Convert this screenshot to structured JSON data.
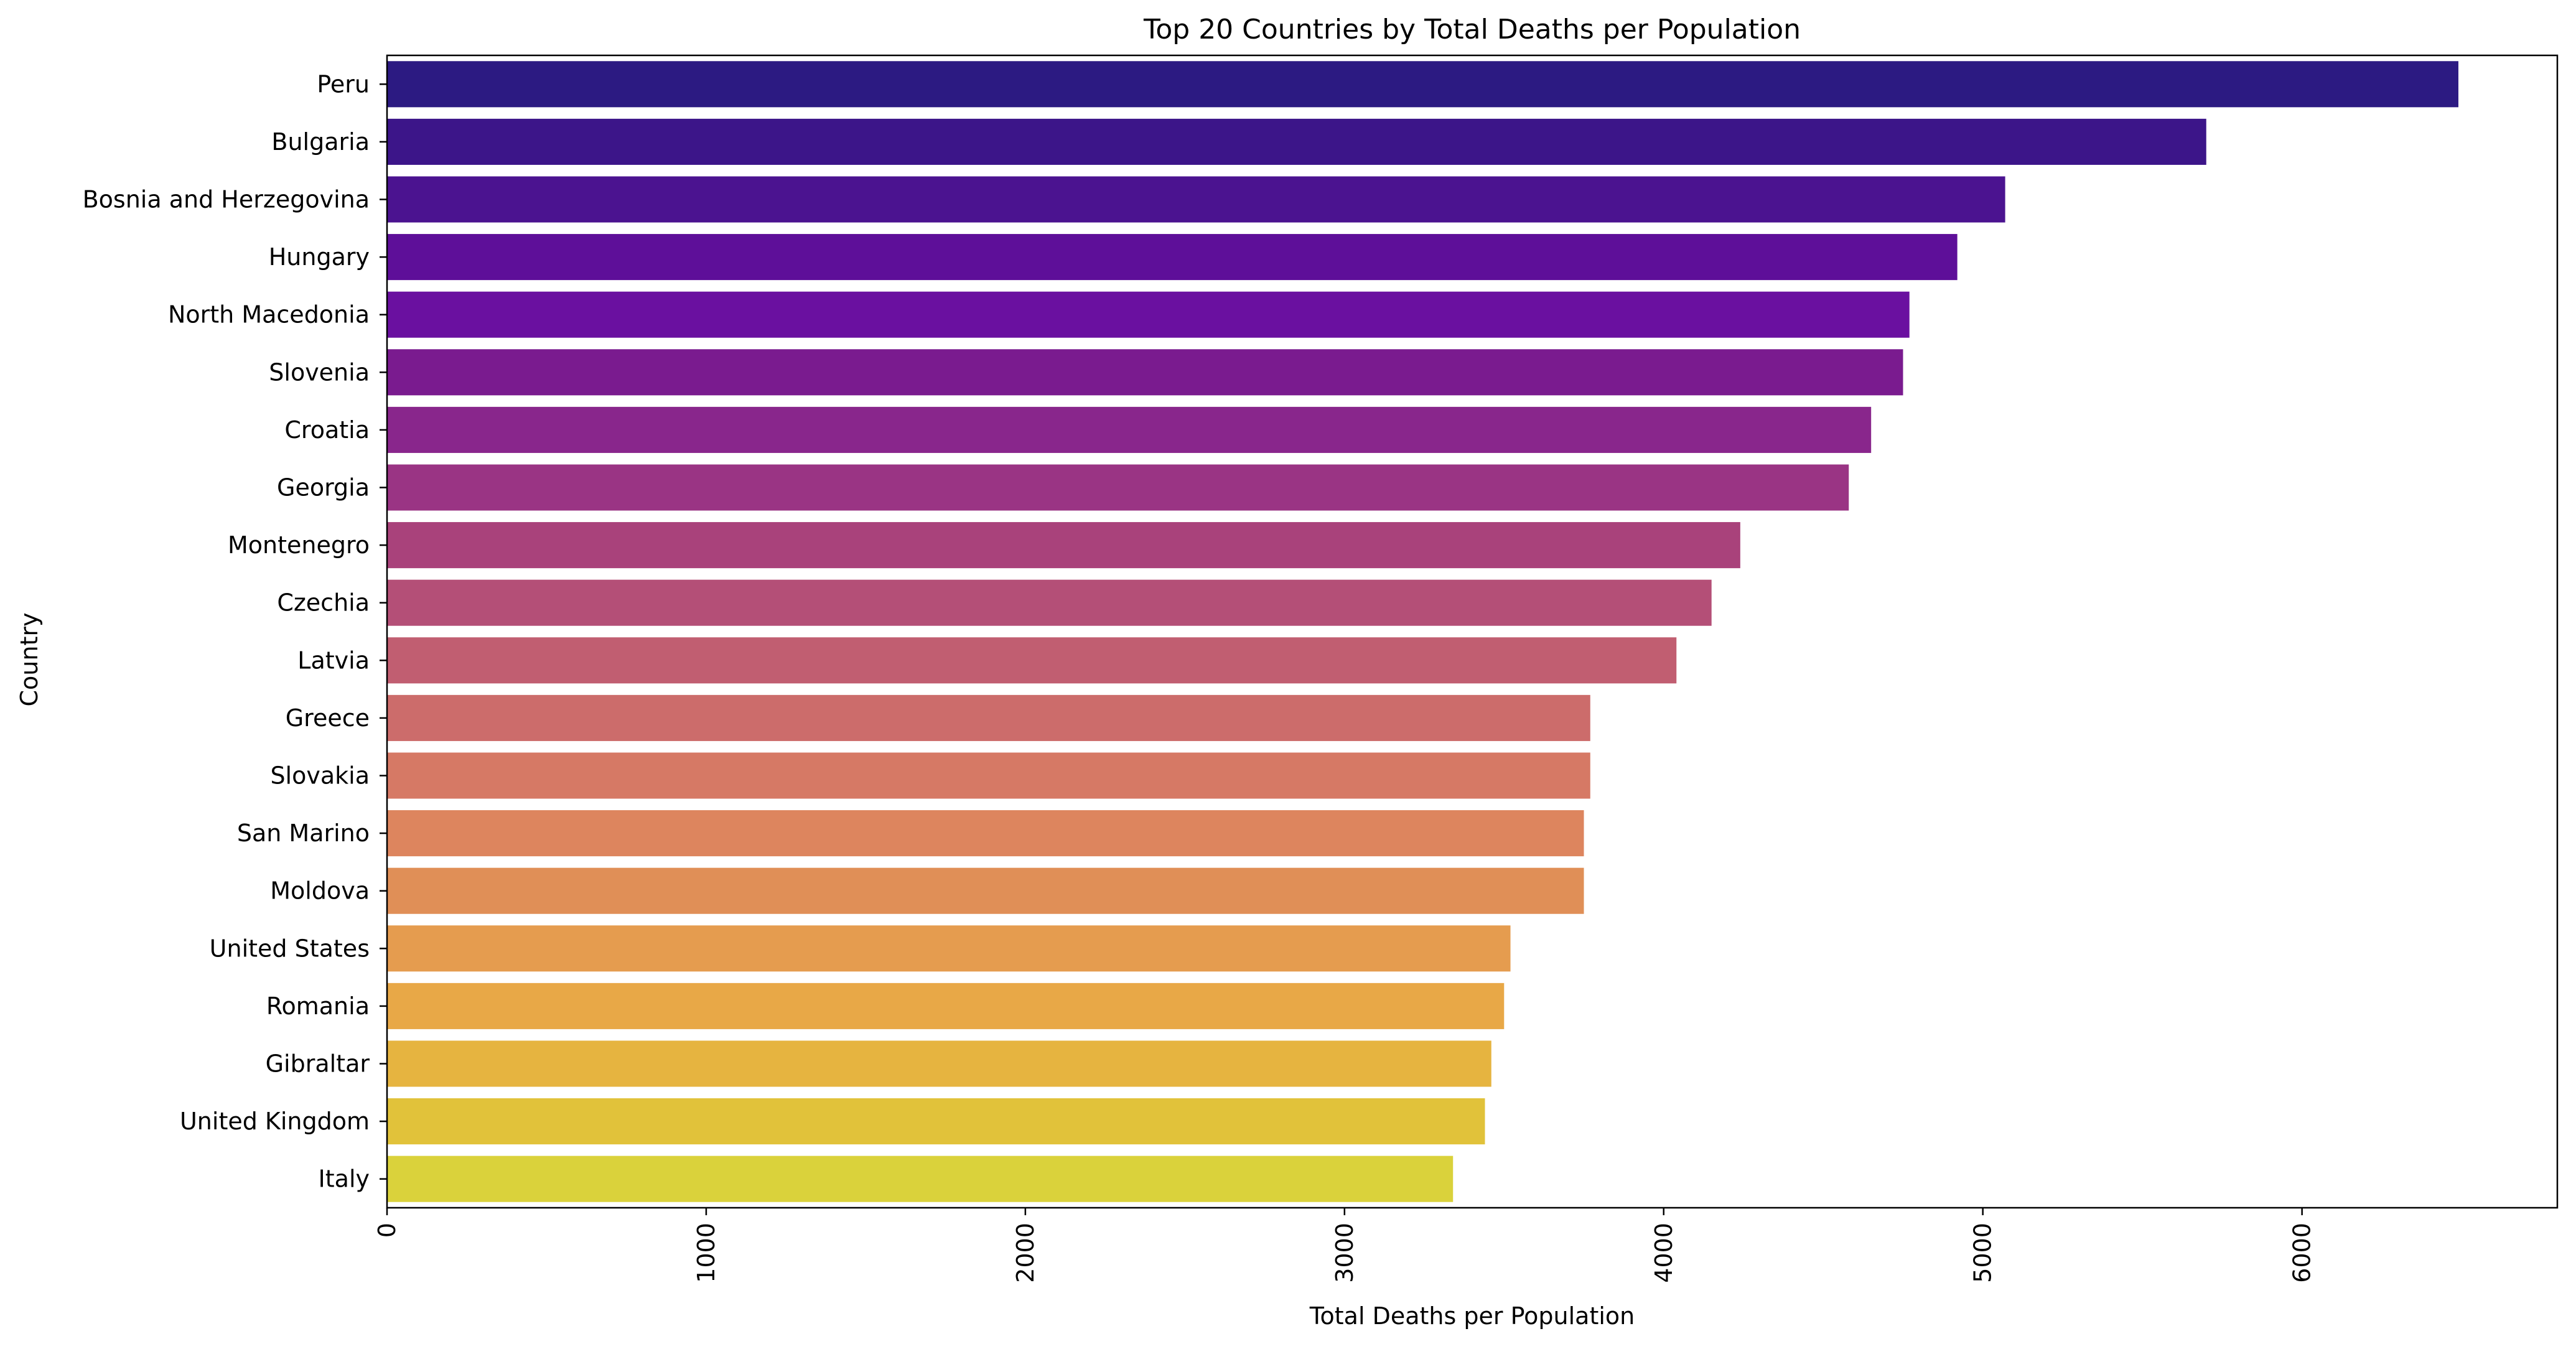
{
  "chart_data": {
    "type": "bar",
    "orientation": "horizontal",
    "title": "Top 20 Countries by Total Deaths per Population",
    "xlabel": "Total Deaths per Population",
    "ylabel": "Country",
    "xlim": [
      0,
      6800
    ],
    "xticks": [
      0,
      1000,
      2000,
      3000,
      4000,
      5000,
      6000
    ],
    "xtick_labels": [
      "0",
      "1000",
      "2000",
      "3000",
      "4000",
      "5000",
      "6000"
    ],
    "grid": false,
    "categories": [
      "Peru",
      "Bulgaria",
      "Bosnia and Herzegovina",
      "Hungary",
      "North Macedonia",
      "Slovenia",
      "Croatia",
      "Georgia",
      "Montenegro",
      "Czechia",
      "Latvia",
      "Greece",
      "Slovakia",
      "San Marino",
      "Moldova",
      "United States",
      "Romania",
      "Gibraltar",
      "United Kingdom",
      "Italy"
    ],
    "values": [
      6490,
      5700,
      5070,
      4920,
      4770,
      4750,
      4650,
      4580,
      4240,
      4150,
      4040,
      3770,
      3770,
      3750,
      3750,
      3520,
      3500,
      3460,
      3440,
      3340
    ],
    "colors": [
      "#2c1a82",
      "#3c1589",
      "#4b1390",
      "#5e0f99",
      "#6a10a0",
      "#7a1b8f",
      "#89268c",
      "#9a3484",
      "#a9427b",
      "#b44f77",
      "#c15e71",
      "#cc6c6b",
      "#d67965",
      "#dd855e",
      "#e08f57",
      "#e59c4f",
      "#e8a847",
      "#e6b440",
      "#e1c23a",
      "#dad23b"
    ]
  }
}
